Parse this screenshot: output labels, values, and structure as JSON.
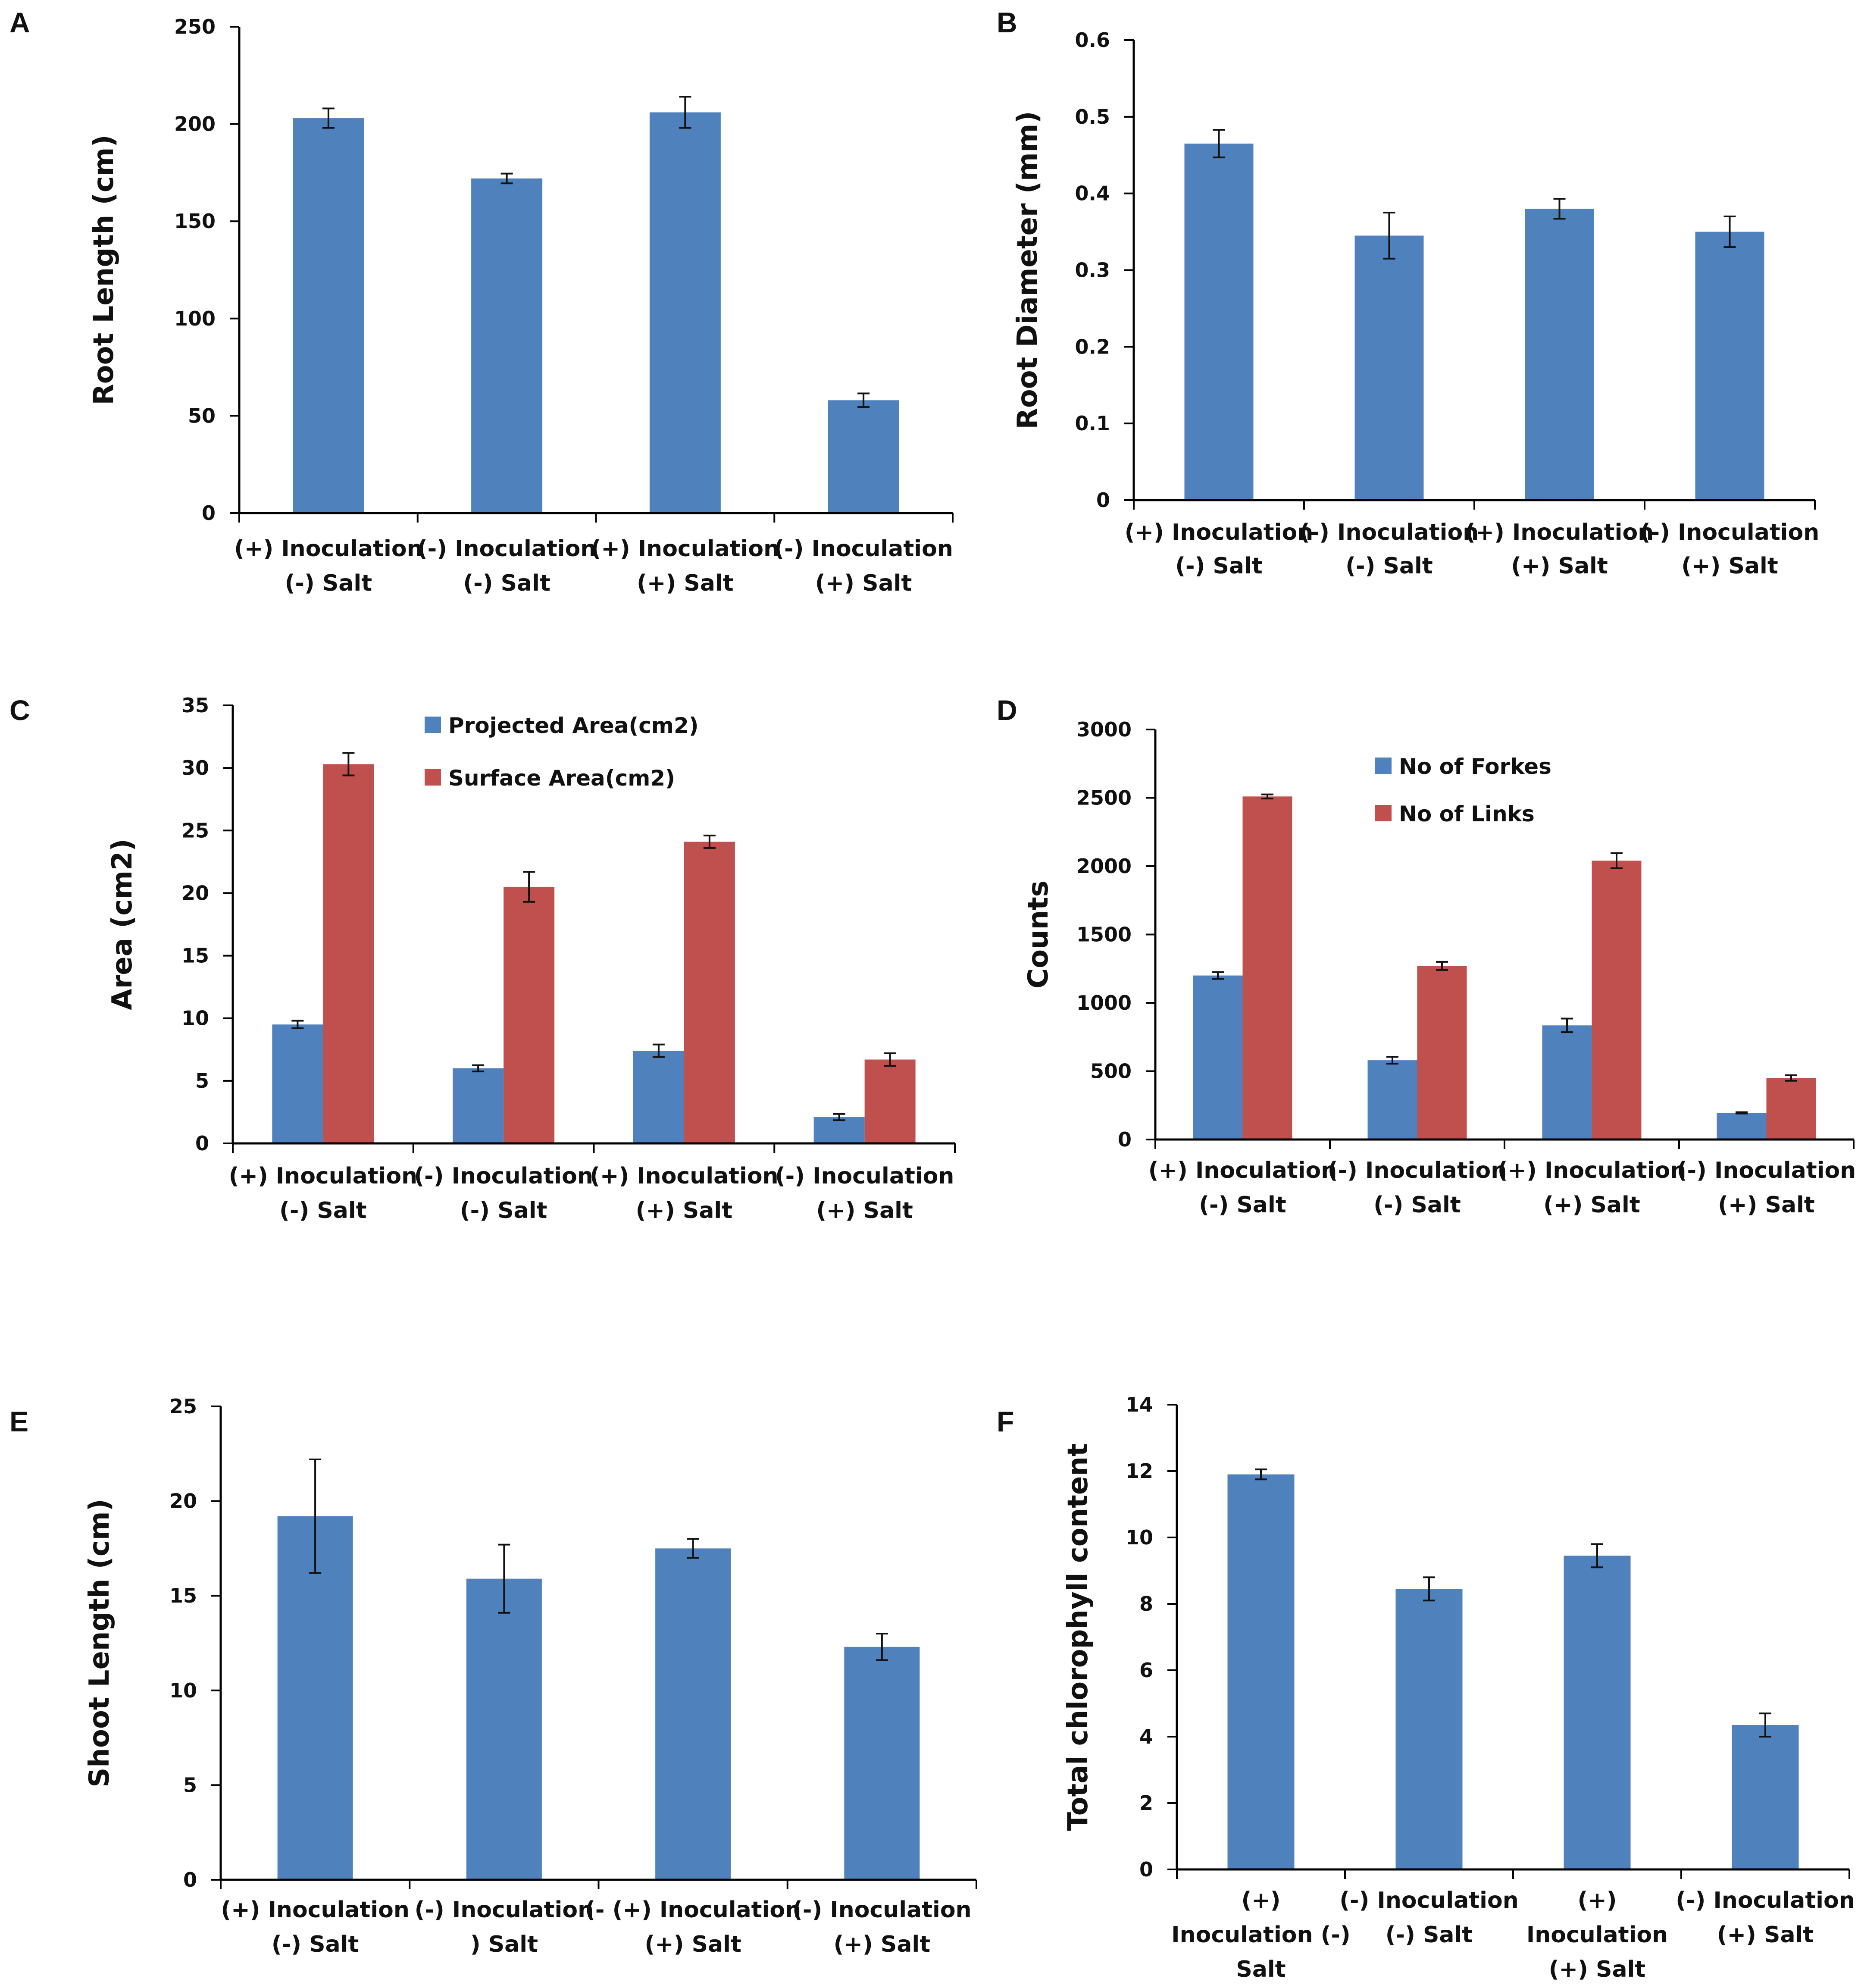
{
  "colors": {
    "blue": "#4F81BD",
    "red": "#C0504D",
    "axis": "#000000"
  },
  "chart_data": [
    {
      "panel": "A",
      "type": "bar",
      "ylabel": "Root Length (cm)",
      "ylim": [
        0,
        250
      ],
      "yticks": [
        0,
        50,
        100,
        150,
        200,
        250
      ],
      "categories": [
        [
          "(+) Inoculation",
          "(-) Salt"
        ],
        [
          "(-) Inoculation",
          "(-) Salt"
        ],
        [
          "(+) Inoculation",
          "(+) Salt"
        ],
        [
          "(-) Inoculation",
          "(+) Salt"
        ]
      ],
      "series": [
        {
          "name": "Root Length",
          "color": "#4F81BD",
          "values": [
            203,
            172,
            206,
            58
          ],
          "errors": [
            5,
            2.5,
            8,
            3.5
          ]
        }
      ]
    },
    {
      "panel": "B",
      "type": "bar",
      "ylabel": "Root Diameter (mm)",
      "ylim": [
        0,
        0.6
      ],
      "yticks": [
        "0",
        "0.1",
        "0.2",
        "0.3",
        "0.4",
        "0.5",
        "0.6"
      ],
      "categories": [
        [
          "(+) Inoculation",
          "(-) Salt"
        ],
        [
          "(-) Inoculation",
          "(-) Salt"
        ],
        [
          "(+) Inoculation",
          "(+) Salt"
        ],
        [
          "(-) Inoculation",
          "(+) Salt"
        ]
      ],
      "series": [
        {
          "name": "Root Diameter",
          "color": "#4F81BD",
          "values": [
            0.465,
            0.345,
            0.38,
            0.35
          ],
          "errors": [
            0.018,
            0.03,
            0.013,
            0.02
          ]
        }
      ]
    },
    {
      "panel": "C",
      "type": "bar",
      "ylabel": "Area (cm2)",
      "ylim": [
        0,
        35
      ],
      "yticks": [
        0,
        5,
        10,
        15,
        20,
        25,
        30,
        35
      ],
      "categories": [
        [
          "(+) Inoculation",
          "(-) Salt"
        ],
        [
          "(-) Inoculation",
          "(-) Salt"
        ],
        [
          "(+) Inoculation",
          "(+) Salt"
        ],
        [
          "(-) Inoculation",
          "(+) Salt"
        ]
      ],
      "series": [
        {
          "name": "Projected Area(cm2)",
          "color": "#4F81BD",
          "values": [
            9.5,
            6.0,
            7.4,
            2.1
          ],
          "errors": [
            0.3,
            0.25,
            0.5,
            0.25
          ]
        },
        {
          "name": "Surface Area(cm2)",
          "color": "#C0504D",
          "values": [
            30.3,
            20.5,
            24.1,
            6.7
          ],
          "errors": [
            0.9,
            1.2,
            0.5,
            0.5
          ]
        }
      ]
    },
    {
      "panel": "D",
      "type": "bar",
      "ylabel": "Counts",
      "ylim": [
        0,
        3000
      ],
      "yticks": [
        0,
        500,
        1000,
        1500,
        2000,
        2500,
        3000
      ],
      "categories": [
        [
          "(+) Inoculation",
          "(-) Salt"
        ],
        [
          "(-) Inoculation",
          "(-) Salt"
        ],
        [
          "(+) Inoculation",
          "(+) Salt"
        ],
        [
          "(-) Inoculation",
          "(+) Salt"
        ]
      ],
      "series": [
        {
          "name": "No of Forkes",
          "color": "#4F81BD",
          "values": [
            1200,
            580,
            835,
            195
          ],
          "errors": [
            25,
            25,
            50,
            5
          ]
        },
        {
          "name": "No of Links",
          "color": "#C0504D",
          "values": [
            2510,
            1270,
            2040,
            450
          ],
          "errors": [
            15,
            30,
            55,
            20
          ]
        }
      ]
    },
    {
      "panel": "E",
      "type": "bar",
      "ylabel": "Shoot Length (cm)",
      "ylim": [
        0,
        25
      ],
      "yticks": [
        0,
        5,
        10,
        15,
        20,
        25
      ],
      "categories": [
        [
          "(+) Inoculation",
          "(-) Salt"
        ],
        [
          "(-) Inoculation",
          ") Salt"
        ],
        [
          "(- (+) Inoculation",
          "(+) Salt"
        ],
        [
          "(-) Inoculation",
          "(+) Salt"
        ]
      ],
      "series": [
        {
          "name": "Shoot Length",
          "color": "#4F81BD",
          "values": [
            19.2,
            15.9,
            17.5,
            12.3
          ],
          "errors": [
            3.0,
            1.8,
            0.5,
            0.7
          ]
        }
      ]
    },
    {
      "panel": "F",
      "type": "bar",
      "ylabel": "Total chlorophyll content",
      "ylim": [
        0,
        14
      ],
      "yticks": [
        0,
        2,
        4,
        6,
        8,
        10,
        12,
        14
      ],
      "categories": [
        [
          "(+)",
          "Inoculation (-)",
          "Salt"
        ],
        [
          "(-) Inoculation",
          "(-) Salt"
        ],
        [
          "(+)",
          "Inoculation",
          "(+) Salt"
        ],
        [
          "(-) Inoculation",
          "(+) Salt"
        ]
      ],
      "series": [
        {
          "name": "Total chlorophyll content",
          "color": "#4F81BD",
          "values": [
            11.9,
            8.45,
            9.45,
            4.35
          ],
          "errors": [
            0.15,
            0.35,
            0.35,
            0.35
          ]
        }
      ]
    }
  ]
}
